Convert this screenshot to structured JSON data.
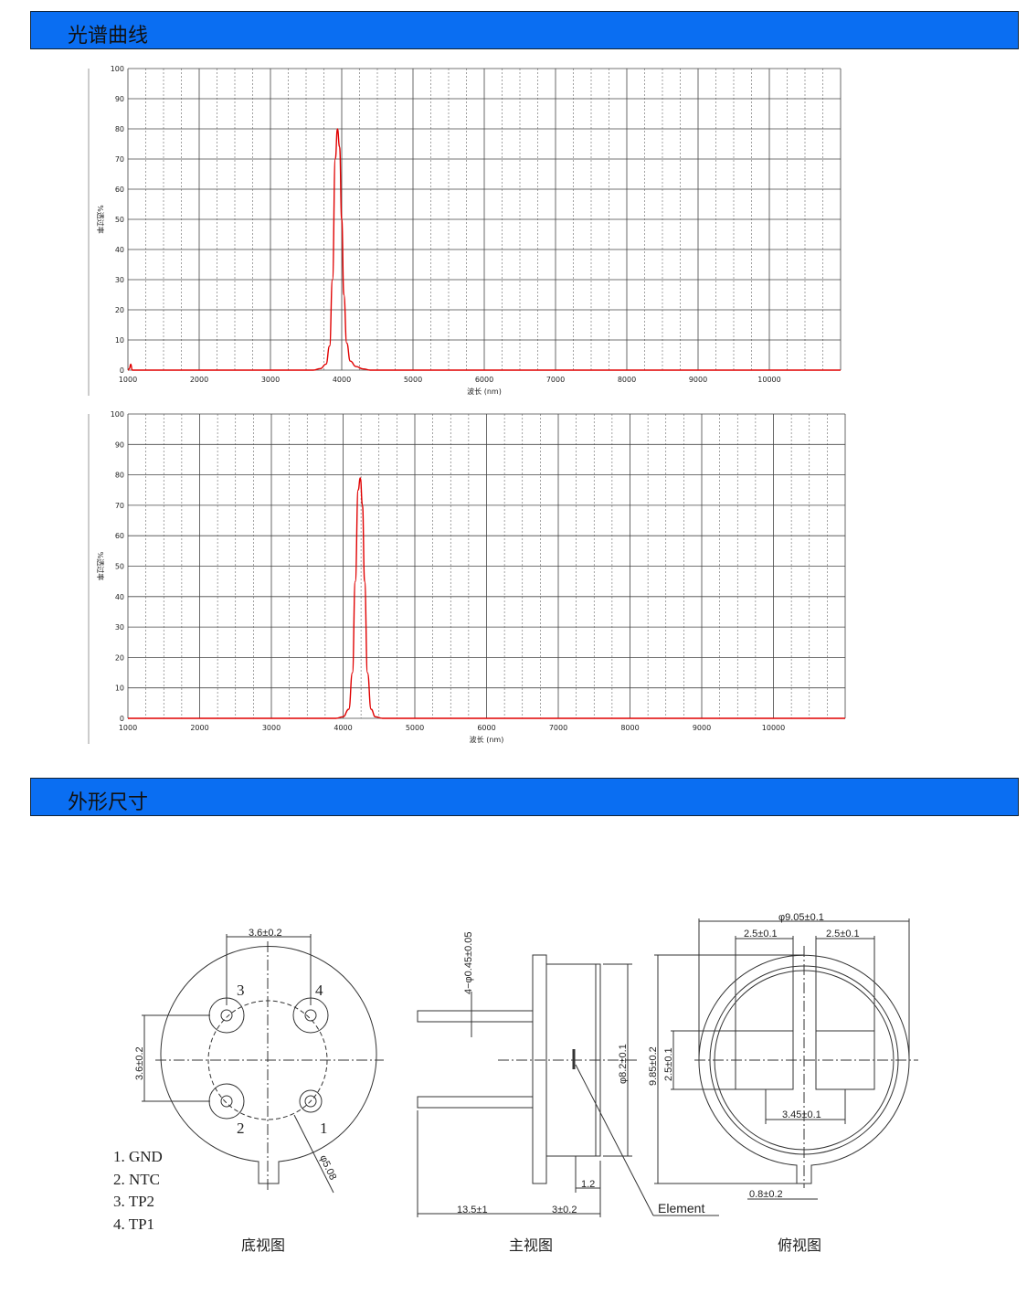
{
  "sections": {
    "spectrum_title": "光谱曲线",
    "outline_title": "外形尺寸"
  },
  "colors": {
    "header_bar": "#0a6ef2",
    "curve": "#e00000"
  },
  "chart_data": [
    {
      "type": "line",
      "xlabel": "波长 (nm)",
      "ylabel": "%透过率",
      "xlim": [
        1000,
        11000
      ],
      "ylim": [
        0,
        100
      ],
      "xticks": [
        1000,
        2000,
        3000,
        4000,
        5000,
        6000,
        7000,
        8000,
        9000,
        10000
      ],
      "yticks": [
        0,
        10,
        20,
        30,
        40,
        50,
        60,
        70,
        80,
        90,
        100
      ],
      "grid": true,
      "series": [
        {
          "points": [
            [
              1000,
              0
            ],
            [
              1020,
              0.5
            ],
            [
              1040,
              2
            ],
            [
              1060,
              0
            ],
            [
              3600,
              0
            ],
            [
              3700,
              0.5
            ],
            [
              3780,
              2
            ],
            [
              3830,
              8
            ],
            [
              3870,
              30
            ],
            [
              3910,
              70
            ],
            [
              3940,
              80
            ],
            [
              3970,
              74
            ],
            [
              4000,
              50
            ],
            [
              4030,
              25
            ],
            [
              4070,
              9
            ],
            [
              4120,
              3
            ],
            [
              4200,
              1.2
            ],
            [
              4300,
              0.4
            ],
            [
              4400,
              0
            ],
            [
              11000,
              0
            ]
          ]
        }
      ]
    },
    {
      "type": "line",
      "xlabel": "波长 (nm)",
      "ylabel": "%透过率",
      "xlim": [
        1000,
        11000
      ],
      "ylim": [
        0,
        100
      ],
      "xticks": [
        1000,
        2000,
        3000,
        4000,
        5000,
        6000,
        7000,
        8000,
        9000,
        10000
      ],
      "yticks": [
        0,
        10,
        20,
        30,
        40,
        50,
        60,
        70,
        80,
        90,
        100
      ],
      "grid": true,
      "series": [
        {
          "points": [
            [
              1000,
              0
            ],
            [
              3900,
              0
            ],
            [
              4000,
              0.5
            ],
            [
              4080,
              3
            ],
            [
              4130,
              15
            ],
            [
              4170,
              45
            ],
            [
              4210,
              75
            ],
            [
              4240,
              79
            ],
            [
              4270,
              70
            ],
            [
              4300,
              45
            ],
            [
              4340,
              15
            ],
            [
              4390,
              3
            ],
            [
              4450,
              0.5
            ],
            [
              4550,
              0
            ],
            [
              11000,
              0
            ]
          ]
        }
      ]
    }
  ],
  "drawing": {
    "bottom_view": {
      "caption": "底视图",
      "pin_spacing_h": "3.6±0.2",
      "pin_spacing_v": "3.6±0.2",
      "pcd": "φ5.08",
      "pin_numbers": [
        "1",
        "2",
        "3",
        "4"
      ],
      "pin_list": [
        "1.  GND",
        "2.  NTC",
        "3.  TP2",
        "4.  TP1"
      ]
    },
    "front_view": {
      "caption": "主视图",
      "pin_dia": "4−φ0.45±0.05",
      "body_dia": "φ8.2±0.1",
      "lead_len": "13.5±1",
      "body_h": "3±0.2",
      "window": "1.2",
      "element": "Element"
    },
    "top_view": {
      "caption": "俯视图",
      "outer_dia": "φ9.05±0.1",
      "win_w1": "2.5±0.1",
      "win_w2": "2.5±0.1",
      "total_h": "9.85±0.2",
      "win_h": "2.5±0.1",
      "win_pitch": "3.45±0.1",
      "tab_w": "0.8±0.2"
    }
  }
}
